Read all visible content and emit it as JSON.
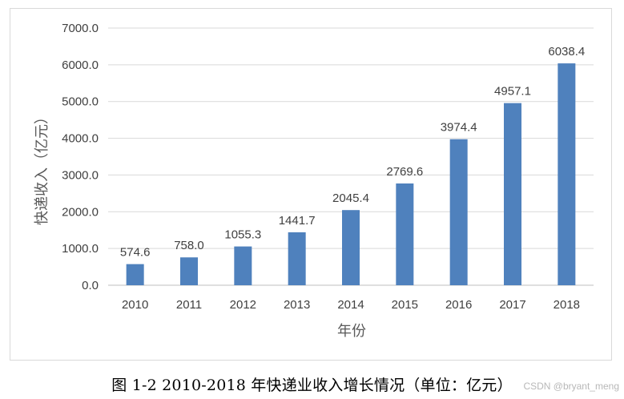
{
  "chart_data": {
    "type": "bar",
    "categories": [
      "2010",
      "2011",
      "2012",
      "2013",
      "2014",
      "2015",
      "2016",
      "2017",
      "2018"
    ],
    "values": [
      574.6,
      758.0,
      1055.3,
      1441.7,
      2045.4,
      2769.6,
      3974.4,
      4957.1,
      6038.4
    ],
    "value_labels": [
      "574.6",
      "758.0",
      "1055.3",
      "1441.7",
      "2045.4",
      "2769.6",
      "3974.4",
      "4957.1",
      "6038.4"
    ],
    "ylim": [
      0,
      7000
    ],
    "yticks": [
      "0.0",
      "1000.0",
      "2000.0",
      "3000.0",
      "4000.0",
      "5000.0",
      "6000.0",
      "7000.0"
    ],
    "xlabel": "年份",
    "ylabel": "快递收入（亿元）",
    "grid": true,
    "bar_color": "#4f81bd"
  },
  "caption": "图 1-2 2010-2018 年快递业收入增长情况（单位：亿元）",
  "watermark": "CSDN @bryant_meng"
}
